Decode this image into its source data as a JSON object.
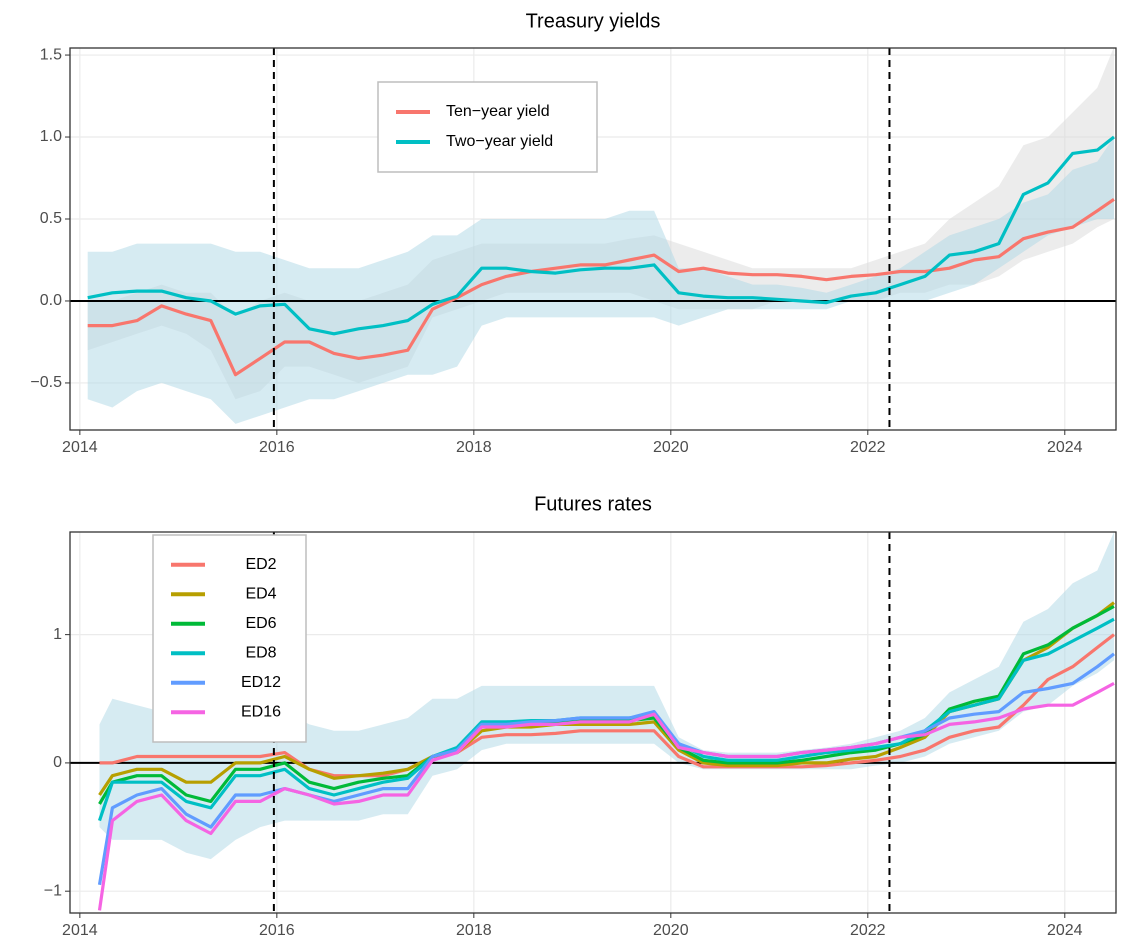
{
  "chart_data": [
    {
      "type": "line",
      "title": "Treasury yields",
      "legend": "top-center",
      "xlim": [
        2013.9,
        2024.52
      ],
      "xticks": [
        2014,
        2016,
        2018,
        2020,
        2022,
        2024
      ],
      "ylim": [
        -0.787,
        1.543
      ],
      "yticks": [
        {
          "value": -0.5,
          "label": "−0.5"
        },
        {
          "value": 0,
          "label": "0.0"
        },
        {
          "value": 0.5,
          "label": "0.5"
        },
        {
          "value": 1,
          "label": "1.0"
        },
        {
          "value": 1.5,
          "label": "1.5"
        }
      ],
      "grid": true,
      "hline": 0,
      "vlines": [
        2015.97,
        2022.22
      ],
      "x": [
        2014.08,
        2014.33,
        2014.58,
        2014.83,
        2015.08,
        2015.33,
        2015.58,
        2015.83,
        2016.08,
        2016.33,
        2016.58,
        2016.83,
        2017.08,
        2017.33,
        2017.58,
        2017.83,
        2018.08,
        2018.33,
        2018.58,
        2018.83,
        2019.08,
        2019.33,
        2019.58,
        2019.83,
        2020.08,
        2020.33,
        2020.58,
        2020.83,
        2021.08,
        2021.33,
        2021.58,
        2021.83,
        2022.08,
        2022.33,
        2022.58,
        2022.83,
        2023.08,
        2023.33,
        2023.58,
        2023.83,
        2024.08,
        2024.33,
        2024.5
      ],
      "series": [
        {
          "name": "Ten−year yield",
          "color": "#f8766d",
          "band_color": "#d9d9d9",
          "values": [
            -0.15,
            -0.15,
            -0.12,
            -0.03,
            -0.08,
            -0.12,
            -0.45,
            -0.35,
            -0.25,
            -0.25,
            -0.32,
            -0.35,
            -0.33,
            -0.3,
            -0.05,
            0.02,
            0.1,
            0.15,
            0.18,
            0.2,
            0.22,
            0.22,
            0.25,
            0.28,
            0.18,
            0.2,
            0.17,
            0.16,
            0.16,
            0.15,
            0.13,
            0.15,
            0.16,
            0.18,
            0.18,
            0.2,
            0.25,
            0.27,
            0.38,
            0.42,
            0.45,
            0.55,
            0.62
          ],
          "lower": [
            -0.3,
            -0.25,
            -0.2,
            -0.15,
            -0.2,
            -0.3,
            -0.6,
            -0.55,
            -0.4,
            -0.4,
            -0.45,
            -0.5,
            -0.45,
            -0.4,
            -0.1,
            -0.05,
            0.0,
            0.05,
            0.05,
            0.05,
            0.05,
            0.05,
            0.05,
            0.0,
            -0.05,
            -0.05,
            -0.05,
            -0.05,
            0.0,
            0.0,
            0.0,
            0.0,
            0.0,
            0.05,
            0.05,
            0.1,
            0.1,
            0.15,
            0.25,
            0.3,
            0.35,
            0.45,
            0.5
          ],
          "upper": [
            0.0,
            0.0,
            0.05,
            0.1,
            0.05,
            0.05,
            -0.1,
            0.0,
            0.05,
            0.0,
            0.0,
            0.0,
            0.05,
            0.1,
            0.25,
            0.3,
            0.35,
            0.35,
            0.35,
            0.35,
            0.35,
            0.35,
            0.38,
            0.4,
            0.35,
            0.3,
            0.25,
            0.2,
            0.2,
            0.2,
            0.2,
            0.2,
            0.25,
            0.3,
            0.35,
            0.5,
            0.6,
            0.7,
            0.95,
            1.0,
            1.15,
            1.3,
            1.55
          ]
        },
        {
          "name": "Two−year yield",
          "color": "#00bfc4",
          "band_color": "#add8e6",
          "values": [
            0.02,
            0.05,
            0.06,
            0.06,
            0.02,
            0.0,
            -0.08,
            -0.03,
            -0.02,
            -0.17,
            -0.2,
            -0.17,
            -0.15,
            -0.12,
            -0.02,
            0.03,
            0.2,
            0.2,
            0.18,
            0.17,
            0.19,
            0.2,
            0.2,
            0.22,
            0.05,
            0.03,
            0.02,
            0.02,
            0.01,
            0.0,
            -0.01,
            0.03,
            0.05,
            0.1,
            0.15,
            0.28,
            0.3,
            0.35,
            0.65,
            0.72,
            0.9,
            0.92,
            1.0
          ],
          "lower": [
            -0.6,
            -0.65,
            -0.55,
            -0.5,
            -0.55,
            -0.6,
            -0.75,
            -0.7,
            -0.65,
            -0.6,
            -0.6,
            -0.55,
            -0.5,
            -0.45,
            -0.45,
            -0.4,
            -0.15,
            -0.1,
            -0.1,
            -0.1,
            -0.1,
            -0.1,
            -0.1,
            -0.1,
            -0.15,
            -0.1,
            -0.05,
            -0.05,
            -0.05,
            -0.05,
            -0.05,
            0.0,
            0.0,
            0.0,
            0.0,
            0.05,
            0.1,
            0.2,
            0.3,
            0.4,
            0.45,
            0.5,
            0.5
          ],
          "upper": [
            0.3,
            0.3,
            0.35,
            0.35,
            0.35,
            0.35,
            0.3,
            0.3,
            0.25,
            0.2,
            0.2,
            0.2,
            0.25,
            0.3,
            0.4,
            0.4,
            0.5,
            0.5,
            0.5,
            0.5,
            0.5,
            0.5,
            0.55,
            0.55,
            0.2,
            0.2,
            0.15,
            0.1,
            0.1,
            0.08,
            0.05,
            0.1,
            0.15,
            0.2,
            0.3,
            0.4,
            0.45,
            0.5,
            0.6,
            0.65,
            0.8,
            0.85,
            1.0
          ]
        }
      ]
    },
    {
      "type": "line",
      "title": "Futures rates",
      "legend": "top-left",
      "xlim": [
        2013.9,
        2024.52
      ],
      "xticks": [
        2014,
        2016,
        2018,
        2020,
        2022,
        2024
      ],
      "ylim": [
        -1.17,
        1.8
      ],
      "yticks": [
        {
          "value": -1,
          "label": "−1"
        },
        0,
        1
      ],
      "grid": true,
      "hline": 0,
      "vlines": [
        2015.97,
        2022.22
      ],
      "x": [
        2014.2,
        2014.33,
        2014.58,
        2014.83,
        2015.08,
        2015.33,
        2015.58,
        2015.83,
        2016.08,
        2016.33,
        2016.58,
        2016.83,
        2017.08,
        2017.33,
        2017.58,
        2017.83,
        2018.08,
        2018.33,
        2018.58,
        2018.83,
        2019.08,
        2019.33,
        2019.58,
        2019.83,
        2020.08,
        2020.33,
        2020.58,
        2020.83,
        2021.08,
        2021.33,
        2021.58,
        2021.83,
        2022.08,
        2022.33,
        2022.58,
        2022.83,
        2023.08,
        2023.33,
        2023.58,
        2023.83,
        2024.08,
        2024.33,
        2024.5
      ],
      "band": {
        "color": "#add8e6",
        "lower": [
          -0.5,
          -0.6,
          -0.6,
          -0.6,
          -0.7,
          -0.75,
          -0.6,
          -0.5,
          -0.45,
          -0.45,
          -0.45,
          -0.45,
          -0.4,
          -0.4,
          -0.1,
          -0.05,
          0.1,
          0.15,
          0.15,
          0.15,
          0.15,
          0.15,
          0.15,
          0.15,
          0.0,
          -0.05,
          -0.05,
          -0.05,
          -0.05,
          -0.05,
          -0.05,
          -0.05,
          -0.02,
          0.0,
          0.05,
          0.15,
          0.2,
          0.25,
          0.4,
          0.45,
          0.6,
          0.7,
          0.8
        ],
        "upper": [
          0.3,
          0.5,
          0.45,
          0.4,
          0.3,
          0.3,
          0.35,
          0.4,
          0.4,
          0.3,
          0.25,
          0.25,
          0.3,
          0.35,
          0.5,
          0.5,
          0.6,
          0.6,
          0.6,
          0.6,
          0.6,
          0.6,
          0.6,
          0.6,
          0.2,
          0.1,
          0.08,
          0.08,
          0.08,
          0.1,
          0.12,
          0.15,
          0.2,
          0.25,
          0.35,
          0.55,
          0.65,
          0.75,
          1.1,
          1.2,
          1.4,
          1.5,
          1.8
        ]
      },
      "series": [
        {
          "name": "ED2",
          "color": "#f8766d",
          "values": [
            0,
            0,
            0.05,
            0.05,
            0.05,
            0.05,
            0.05,
            0.05,
            0.08,
            -0.05,
            -0.1,
            -0.1,
            -0.1,
            -0.05,
            0.05,
            0.08,
            0.2,
            0.22,
            0.22,
            0.23,
            0.25,
            0.25,
            0.25,
            0.25,
            0.05,
            -0.03,
            -0.03,
            -0.03,
            -0.03,
            -0.03,
            -0.02,
            0.0,
            0.02,
            0.05,
            0.1,
            0.2,
            0.25,
            0.28,
            0.45,
            0.65,
            0.75,
            0.9,
            1.0
          ]
        },
        {
          "name": "ED4",
          "color": "#b79f00",
          "values": [
            -0.25,
            -0.1,
            -0.05,
            -0.05,
            -0.15,
            -0.15,
            0.0,
            0.0,
            0.05,
            -0.05,
            -0.12,
            -0.1,
            -0.08,
            -0.05,
            0.05,
            0.08,
            0.25,
            0.28,
            0.28,
            0.3,
            0.3,
            0.3,
            0.3,
            0.32,
            0.1,
            0.0,
            -0.02,
            -0.02,
            -0.02,
            0.0,
            0.0,
            0.03,
            0.05,
            0.12,
            0.2,
            0.4,
            0.45,
            0.5,
            0.8,
            0.9,
            1.05,
            1.15,
            1.25
          ]
        },
        {
          "name": "ED6",
          "color": "#00ba38",
          "values": [
            -0.32,
            -0.15,
            -0.1,
            -0.1,
            -0.25,
            -0.3,
            -0.05,
            -0.05,
            0.0,
            -0.15,
            -0.2,
            -0.15,
            -0.12,
            -0.1,
            0.05,
            0.1,
            0.3,
            0.3,
            0.32,
            0.32,
            0.33,
            0.33,
            0.33,
            0.35,
            0.12,
            0.02,
            0.0,
            0.0,
            0.0,
            0.02,
            0.05,
            0.08,
            0.1,
            0.15,
            0.22,
            0.42,
            0.48,
            0.52,
            0.85,
            0.92,
            1.05,
            1.15,
            1.22
          ]
        },
        {
          "name": "ED8",
          "color": "#00bfc4",
          "values": [
            -0.45,
            -0.15,
            -0.15,
            -0.15,
            -0.3,
            -0.35,
            -0.1,
            -0.1,
            -0.05,
            -0.2,
            -0.25,
            -0.2,
            -0.15,
            -0.12,
            0.05,
            0.12,
            0.32,
            0.32,
            0.33,
            0.33,
            0.35,
            0.35,
            0.35,
            0.38,
            0.15,
            0.05,
            0.02,
            0.02,
            0.02,
            0.05,
            0.08,
            0.1,
            0.12,
            0.15,
            0.25,
            0.4,
            0.45,
            0.5,
            0.8,
            0.85,
            0.95,
            1.05,
            1.12
          ]
        },
        {
          "name": "ED12",
          "color": "#619cff",
          "values": [
            -0.95,
            -0.35,
            -0.25,
            -0.2,
            -0.4,
            -0.5,
            -0.25,
            -0.25,
            -0.2,
            -0.25,
            -0.3,
            -0.25,
            -0.2,
            -0.2,
            0.05,
            0.1,
            0.3,
            0.3,
            0.32,
            0.33,
            0.35,
            0.35,
            0.35,
            0.4,
            0.15,
            0.08,
            0.05,
            0.05,
            0.05,
            0.08,
            0.1,
            0.12,
            0.15,
            0.2,
            0.25,
            0.35,
            0.38,
            0.4,
            0.55,
            0.58,
            0.62,
            0.75,
            0.85
          ]
        },
        {
          "name": "ED16",
          "color": "#f564e3",
          "values": [
            -1.15,
            -0.45,
            -0.3,
            -0.25,
            -0.45,
            -0.55,
            -0.3,
            -0.3,
            -0.2,
            -0.25,
            -0.32,
            -0.3,
            -0.25,
            -0.25,
            0.02,
            0.08,
            0.28,
            0.28,
            0.3,
            0.3,
            0.32,
            0.32,
            0.32,
            0.38,
            0.12,
            0.08,
            0.05,
            0.05,
            0.05,
            0.08,
            0.1,
            0.12,
            0.15,
            0.2,
            0.22,
            0.3,
            0.32,
            0.35,
            0.42,
            0.45,
            0.45,
            0.55,
            0.62
          ]
        }
      ]
    }
  ]
}
